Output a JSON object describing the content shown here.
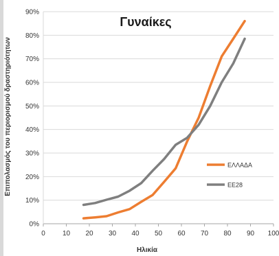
{
  "chart_data": {
    "type": "line",
    "title": "Γυναίκες",
    "xlabel": "Ηλικία",
    "ylabel": "Επιπολασμός του περιορισμού δραστηριότητων",
    "xlim": [
      0,
      100
    ],
    "ylim": [
      0,
      90
    ],
    "x_ticks": [
      "0",
      "10",
      "20",
      "30",
      "40",
      "50",
      "60",
      "70",
      "80",
      "90",
      "100"
    ],
    "y_ticks": [
      "0%",
      "10%",
      "20%",
      "30%",
      "40%",
      "50%",
      "60%",
      "70%",
      "80%",
      "90%"
    ],
    "grid": "horizontal",
    "legend_position": "right",
    "series": [
      {
        "name": "ΕΛΛΑΔΑ",
        "color": "#ed7d31",
        "x": [
          17.5,
          22.5,
          27.5,
          32.5,
          37.5,
          42.5,
          47.5,
          52.5,
          57.5,
          62.5,
          67.5,
          72.5,
          77.5,
          82.5,
          87.5
        ],
        "y": [
          2.3,
          2.7,
          3.2,
          4.8,
          6.2,
          9.3,
          12.2,
          17.8,
          23.5,
          35,
          45,
          58.5,
          71,
          78.5,
          86
        ]
      },
      {
        "name": "ΕΕ28",
        "color": "#7f7f7f",
        "x": [
          17.5,
          22.5,
          27.5,
          32.5,
          37.5,
          42.5,
          47.5,
          52.5,
          57.5,
          62.5,
          67.5,
          72.5,
          77.5,
          82.5,
          87.5
        ],
        "y": [
          8,
          8.8,
          10.2,
          11.5,
          14,
          17.2,
          22.5,
          27.5,
          33.5,
          36.5,
          42,
          50,
          60,
          68,
          78.5
        ]
      }
    ]
  }
}
